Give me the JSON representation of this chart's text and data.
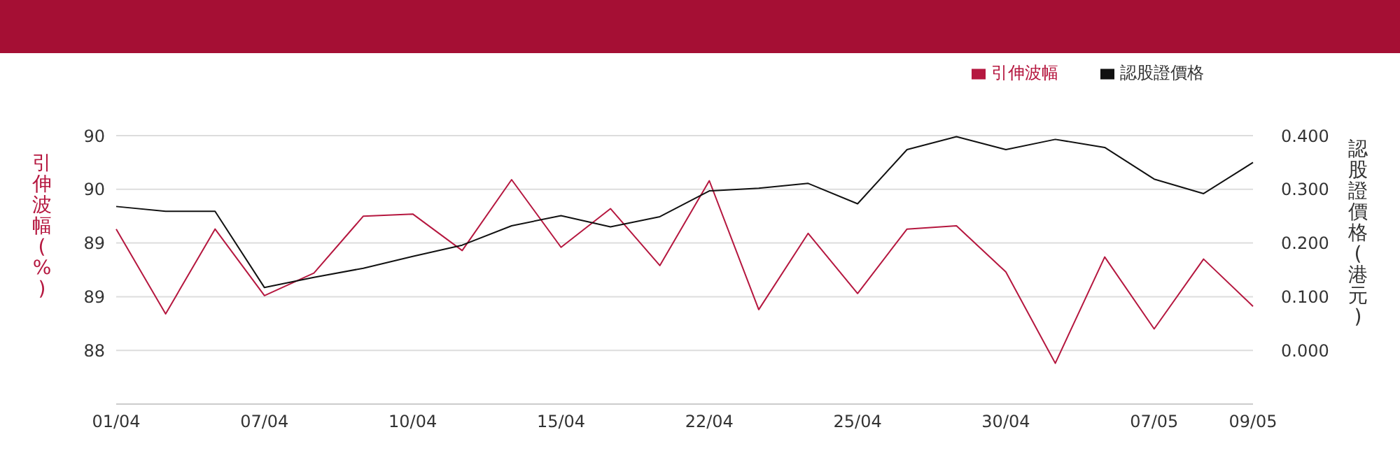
{
  "chart_data": {
    "type": "line",
    "ylabel": "引伸波幅(%)",
    "y2label": "認股證價格(港元)",
    "categories": [
      "01/04",
      null,
      null,
      "07/04",
      null,
      null,
      "10/04",
      null,
      null,
      "15/04",
      null,
      null,
      "22/04",
      null,
      null,
      "25/04",
      null,
      null,
      "30/04",
      null,
      null,
      "07/05",
      null,
      "09/05"
    ],
    "series": [
      {
        "name": "引伸波幅",
        "color": "#b5173f",
        "values": [
          89.13,
          88.34,
          89.13,
          88.51,
          88.72,
          89.25,
          89.27,
          88.93,
          89.59,
          88.96,
          89.32,
          88.79,
          89.58,
          88.38,
          89.09,
          88.53,
          89.13,
          89.16,
          88.73,
          87.88,
          88.87,
          88.2,
          88.85,
          88.41
        ]
      },
      {
        "name": "認股證價格",
        "color": "#111111",
        "axis": "y2",
        "values": [
          0.268,
          0.259,
          0.259,
          0.117,
          0.136,
          0.153,
          0.175,
          0.196,
          0.232,
          0.251,
          0.23,
          0.249,
          0.297,
          0.302,
          0.311,
          0.273,
          0.374,
          0.398,
          0.374,
          0.393,
          0.378,
          0.319,
          0.292,
          0.35
        ]
      }
    ],
    "ylim": [
      87.5,
      90
    ],
    "yticks": [
      90,
      {
        "value": 89.5,
        "label": "90"
      },
      89,
      {
        "value": 88.5,
        "label": "89"
      },
      88
    ],
    "y2lim": [
      -0.1,
      0.4
    ],
    "y2ticks": [
      {
        "value": 0.4,
        "label": "0.400"
      },
      {
        "value": 0.3,
        "label": "0.300"
      },
      {
        "value": 0.2,
        "label": "0.200"
      },
      {
        "value": 0.1,
        "label": "0.100"
      },
      {
        "value": 0,
        "label": "0.000"
      }
    ],
    "grid": "y",
    "legend": "top right",
    "marker": "none",
    "line_style": "solid"
  }
}
